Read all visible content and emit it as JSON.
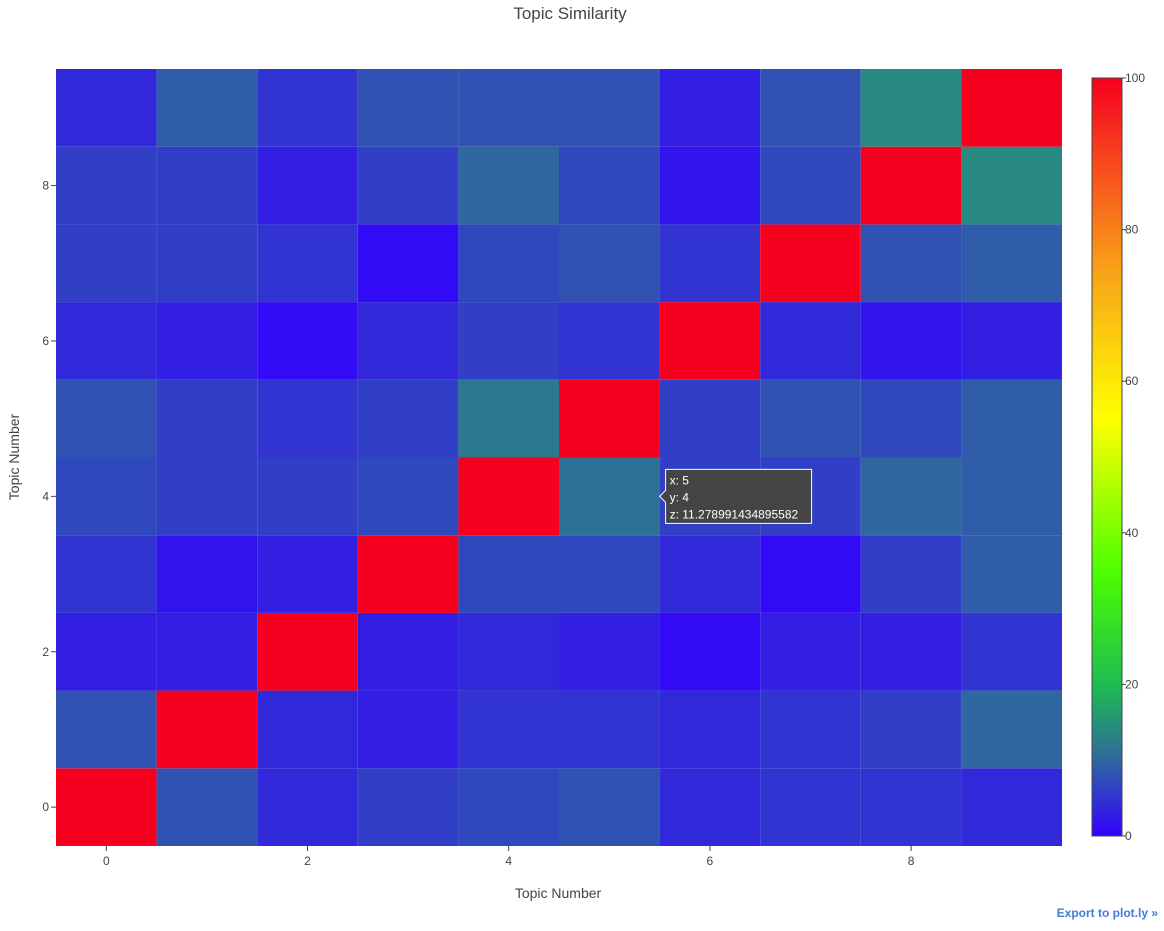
{
  "export_link": "Export to plot.ly »",
  "chart_data": {
    "type": "heatmap",
    "title": "Topic Similarity",
    "xlabel": "Topic Number",
    "ylabel": "Topic Number",
    "x": [
      0,
      1,
      2,
      3,
      4,
      5,
      6,
      7,
      8,
      9
    ],
    "y": [
      0,
      1,
      2,
      3,
      4,
      5,
      6,
      7,
      8,
      9
    ],
    "x_ticks": [
      0,
      2,
      4,
      6,
      8
    ],
    "y_ticks": [
      0,
      2,
      4,
      6,
      8
    ],
    "xlim": [
      -0.5,
      9.5
    ],
    "ylim": [
      -0.5,
      9.5
    ],
    "z": [
      [
        100,
        8,
        4,
        6,
        7,
        8,
        4,
        5,
        5,
        4
      ],
      [
        8,
        100,
        4,
        3,
        5,
        5,
        4,
        5,
        6,
        10
      ],
      [
        3,
        3,
        100,
        3,
        4,
        3,
        1,
        3,
        3,
        5
      ],
      [
        5,
        2,
        3,
        100,
        7,
        7,
        4,
        1,
        6,
        9
      ],
      [
        7,
        6,
        6,
        7,
        100,
        11.278991434895582,
        6,
        6,
        10,
        9
      ],
      [
        8,
        6,
        5,
        6,
        12,
        100,
        6,
        8,
        7,
        9
      ],
      [
        4,
        3,
        1,
        4,
        6,
        5,
        100,
        4,
        2,
        3
      ],
      [
        6,
        6,
        5,
        1,
        7,
        8,
        5,
        100,
        8,
        9
      ],
      [
        6,
        6,
        3,
        6,
        10,
        7,
        2,
        7,
        100,
        14
      ],
      [
        4,
        9,
        5,
        8,
        8,
        8,
        3,
        8,
        14,
        100
      ]
    ],
    "colorscale": [
      [
        0,
        "#3300ff"
      ],
      [
        0.1,
        "#2f67a0"
      ],
      [
        0.2,
        "#1dbd4f"
      ],
      [
        0.35,
        "#4dff00"
      ],
      [
        0.55,
        "#ffff00"
      ],
      [
        0.75,
        "#f8a019"
      ],
      [
        1,
        "#f6001f"
      ]
    ],
    "colorbar": {
      "range": [
        0,
        100
      ],
      "ticks": [
        0,
        20,
        40,
        60,
        80,
        100
      ]
    },
    "hover": {
      "x_text": "x: 5",
      "y_text": "y: 4",
      "z_text": "z: 11.278991434895582",
      "x": 5,
      "y": 4
    }
  }
}
